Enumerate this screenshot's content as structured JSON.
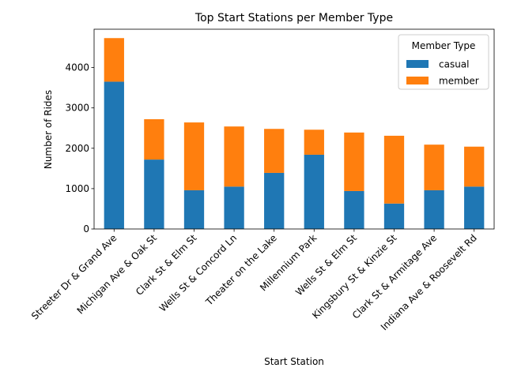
{
  "chart_data": {
    "type": "bar",
    "stacked": true,
    "title": "Top Start Stations per Member Type",
    "xlabel": "Start Station",
    "ylabel": "Number of Rides",
    "ylim": [
      0,
      4950
    ],
    "yticks": [
      0,
      1000,
      2000,
      3000,
      4000
    ],
    "grid": false,
    "legend": {
      "title": "Member Type",
      "placement": "top-right"
    },
    "categories": [
      "Streeter Dr & Grand Ave",
      "Michigan Ave & Oak St",
      "Clark St & Elm St",
      "Wells St & Concord Ln",
      "Theater on the Lake",
      "Millennium Park",
      "Wells St & Elm St",
      "Kingsbury St & Kinzie St",
      "Clark St & Armitage Ave",
      "Indiana Ave & Roosevelt Rd"
    ],
    "series": [
      {
        "name": "casual",
        "color": "#1f77b4",
        "values": [
          3650,
          1720,
          960,
          1050,
          1390,
          1840,
          940,
          630,
          960,
          1050
        ]
      },
      {
        "name": "member",
        "color": "#ff7f0e",
        "values": [
          1080,
          1000,
          1680,
          1490,
          1090,
          620,
          1450,
          1680,
          1130,
          990
        ]
      }
    ]
  }
}
